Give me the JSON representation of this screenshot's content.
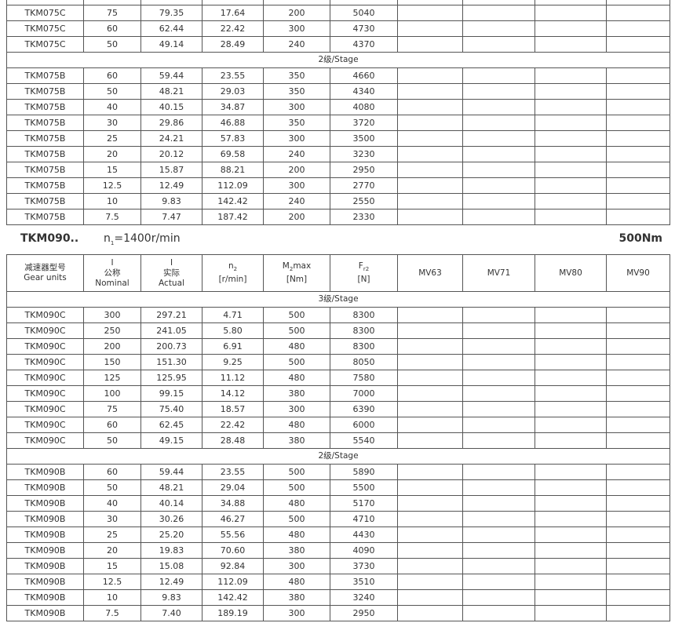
{
  "section_top": {
    "rows_c": [
      [
        "TKM075C",
        "75",
        "79.35",
        "17.64",
        "200",
        "5040"
      ],
      [
        "TKM075C",
        "60",
        "62.44",
        "22.42",
        "300",
        "4730"
      ],
      [
        "TKM075C",
        "50",
        "49.14",
        "28.49",
        "240",
        "4370"
      ]
    ],
    "stage2": "2级/Stage",
    "rows_b": [
      [
        "TKM075B",
        "60",
        "59.44",
        "23.55",
        "350",
        "4660"
      ],
      [
        "TKM075B",
        "50",
        "48.21",
        "29.03",
        "350",
        "4340"
      ],
      [
        "TKM075B",
        "40",
        "40.15",
        "34.87",
        "300",
        "4080"
      ],
      [
        "TKM075B",
        "30",
        "29.86",
        "46.88",
        "350",
        "3720"
      ],
      [
        "TKM075B",
        "25",
        "24.21",
        "57.83",
        "300",
        "3500"
      ],
      [
        "TKM075B",
        "20",
        "20.12",
        "69.58",
        "240",
        "3230"
      ],
      [
        "TKM075B",
        "15",
        "15.87",
        "88.21",
        "200",
        "2950"
      ],
      [
        "TKM075B",
        "12.5",
        "12.49",
        "112.09",
        "300",
        "2770"
      ],
      [
        "TKM075B",
        "10",
        "9.83",
        "142.42",
        "240",
        "2550"
      ],
      [
        "TKM075B",
        "7.5",
        "7.47",
        "187.42",
        "200",
        "2330"
      ]
    ]
  },
  "section": {
    "model": "TKM090..",
    "speed_label": "n",
    "speed_sub": "1",
    "speed_value": "=1400r/min",
    "torque": "500Nm",
    "headers": {
      "gear_cn": "减速器型号",
      "gear_en": "Gear units",
      "i": "I",
      "nominal_cn": "公称",
      "nominal_en": "Nominal",
      "actual_cn": "实际",
      "actual_en": "Actual",
      "n2": "n",
      "n2_sub": "2",
      "n2_unit": "[r/min]",
      "m2": "M",
      "m2_sub": "2",
      "m2_rest": "max",
      "m2_unit": "[Nm]",
      "fr": "F",
      "fr_sub": "r2",
      "fr_unit": "[N]",
      "mv": [
        "MV63",
        "MV71",
        "MV80",
        "MV90"
      ]
    },
    "stage3": "3级/Stage",
    "stage2": "2级/Stage",
    "rows_c": [
      [
        "TKM090C",
        "300",
        "297.21",
        "4.71",
        "500",
        "8300"
      ],
      [
        "TKM090C",
        "250",
        "241.05",
        "5.80",
        "500",
        "8300"
      ],
      [
        "TKM090C",
        "200",
        "200.73",
        "6.91",
        "480",
        "8300"
      ],
      [
        "TKM090C",
        "150",
        "151.30",
        "9.25",
        "500",
        "8050"
      ],
      [
        "TKM090C",
        "125",
        "125.95",
        "11.12",
        "480",
        "7580"
      ],
      [
        "TKM090C",
        "100",
        "99.15",
        "14.12",
        "380",
        "7000"
      ],
      [
        "TKM090C",
        "75",
        "75.40",
        "18.57",
        "300",
        "6390"
      ],
      [
        "TKM090C",
        "60",
        "62.45",
        "22.42",
        "480",
        "6000"
      ],
      [
        "TKM090C",
        "50",
        "49.15",
        "28.48",
        "380",
        "5540"
      ]
    ],
    "rows_b": [
      [
        "TKM090B",
        "60",
        "59.44",
        "23.55",
        "500",
        "5890"
      ],
      [
        "TKM090B",
        "50",
        "48.21",
        "29.04",
        "500",
        "5500"
      ],
      [
        "TKM090B",
        "40",
        "40.14",
        "34.88",
        "480",
        "5170"
      ],
      [
        "TKM090B",
        "30",
        "30.26",
        "46.27",
        "500",
        "4710"
      ],
      [
        "TKM090B",
        "25",
        "25.20",
        "55.56",
        "480",
        "4430"
      ],
      [
        "TKM090B",
        "20",
        "19.83",
        "70.60",
        "380",
        "4090"
      ],
      [
        "TKM090B",
        "15",
        "15.08",
        "92.84",
        "300",
        "3730"
      ],
      [
        "TKM090B",
        "12.5",
        "12.49",
        "112.09",
        "480",
        "3510"
      ],
      [
        "TKM090B",
        "10",
        "9.83",
        "142.42",
        "380",
        "3240"
      ],
      [
        "TKM090B",
        "7.5",
        "7.40",
        "189.19",
        "300",
        "2950"
      ]
    ]
  }
}
